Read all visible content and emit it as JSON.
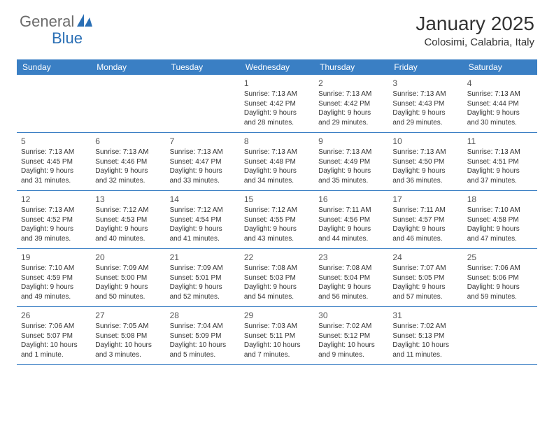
{
  "logo": {
    "text_gray": "General",
    "text_blue": "Blue",
    "gray_color": "#6b6b6b",
    "blue_color": "#2a6fb5"
  },
  "title": "January 2025",
  "location": "Colosimi, Calabria, Italy",
  "colors": {
    "header_bg": "#3a7fc4",
    "header_text": "#ffffff",
    "text": "#333333",
    "border": "#3a7fc4",
    "background": "#ffffff"
  },
  "fonts": {
    "title_size": 28,
    "location_size": 15,
    "day_header_size": 12,
    "day_num_size": 12,
    "body_size": 10
  },
  "day_headers": [
    "Sunday",
    "Monday",
    "Tuesday",
    "Wednesday",
    "Thursday",
    "Friday",
    "Saturday"
  ],
  "weeks": [
    [
      {
        "day": "",
        "sunrise": "",
        "sunset": "",
        "daylight": ""
      },
      {
        "day": "",
        "sunrise": "",
        "sunset": "",
        "daylight": ""
      },
      {
        "day": "",
        "sunrise": "",
        "sunset": "",
        "daylight": ""
      },
      {
        "day": "1",
        "sunrise": "Sunrise: 7:13 AM",
        "sunset": "Sunset: 4:42 PM",
        "daylight": "Daylight: 9 hours and 28 minutes."
      },
      {
        "day": "2",
        "sunrise": "Sunrise: 7:13 AM",
        "sunset": "Sunset: 4:42 PM",
        "daylight": "Daylight: 9 hours and 29 minutes."
      },
      {
        "day": "3",
        "sunrise": "Sunrise: 7:13 AM",
        "sunset": "Sunset: 4:43 PM",
        "daylight": "Daylight: 9 hours and 29 minutes."
      },
      {
        "day": "4",
        "sunrise": "Sunrise: 7:13 AM",
        "sunset": "Sunset: 4:44 PM",
        "daylight": "Daylight: 9 hours and 30 minutes."
      }
    ],
    [
      {
        "day": "5",
        "sunrise": "Sunrise: 7:13 AM",
        "sunset": "Sunset: 4:45 PM",
        "daylight": "Daylight: 9 hours and 31 minutes."
      },
      {
        "day": "6",
        "sunrise": "Sunrise: 7:13 AM",
        "sunset": "Sunset: 4:46 PM",
        "daylight": "Daylight: 9 hours and 32 minutes."
      },
      {
        "day": "7",
        "sunrise": "Sunrise: 7:13 AM",
        "sunset": "Sunset: 4:47 PM",
        "daylight": "Daylight: 9 hours and 33 minutes."
      },
      {
        "day": "8",
        "sunrise": "Sunrise: 7:13 AM",
        "sunset": "Sunset: 4:48 PM",
        "daylight": "Daylight: 9 hours and 34 minutes."
      },
      {
        "day": "9",
        "sunrise": "Sunrise: 7:13 AM",
        "sunset": "Sunset: 4:49 PM",
        "daylight": "Daylight: 9 hours and 35 minutes."
      },
      {
        "day": "10",
        "sunrise": "Sunrise: 7:13 AM",
        "sunset": "Sunset: 4:50 PM",
        "daylight": "Daylight: 9 hours and 36 minutes."
      },
      {
        "day": "11",
        "sunrise": "Sunrise: 7:13 AM",
        "sunset": "Sunset: 4:51 PM",
        "daylight": "Daylight: 9 hours and 37 minutes."
      }
    ],
    [
      {
        "day": "12",
        "sunrise": "Sunrise: 7:13 AM",
        "sunset": "Sunset: 4:52 PM",
        "daylight": "Daylight: 9 hours and 39 minutes."
      },
      {
        "day": "13",
        "sunrise": "Sunrise: 7:12 AM",
        "sunset": "Sunset: 4:53 PM",
        "daylight": "Daylight: 9 hours and 40 minutes."
      },
      {
        "day": "14",
        "sunrise": "Sunrise: 7:12 AM",
        "sunset": "Sunset: 4:54 PM",
        "daylight": "Daylight: 9 hours and 41 minutes."
      },
      {
        "day": "15",
        "sunrise": "Sunrise: 7:12 AM",
        "sunset": "Sunset: 4:55 PM",
        "daylight": "Daylight: 9 hours and 43 minutes."
      },
      {
        "day": "16",
        "sunrise": "Sunrise: 7:11 AM",
        "sunset": "Sunset: 4:56 PM",
        "daylight": "Daylight: 9 hours and 44 minutes."
      },
      {
        "day": "17",
        "sunrise": "Sunrise: 7:11 AM",
        "sunset": "Sunset: 4:57 PM",
        "daylight": "Daylight: 9 hours and 46 minutes."
      },
      {
        "day": "18",
        "sunrise": "Sunrise: 7:10 AM",
        "sunset": "Sunset: 4:58 PM",
        "daylight": "Daylight: 9 hours and 47 minutes."
      }
    ],
    [
      {
        "day": "19",
        "sunrise": "Sunrise: 7:10 AM",
        "sunset": "Sunset: 4:59 PM",
        "daylight": "Daylight: 9 hours and 49 minutes."
      },
      {
        "day": "20",
        "sunrise": "Sunrise: 7:09 AM",
        "sunset": "Sunset: 5:00 PM",
        "daylight": "Daylight: 9 hours and 50 minutes."
      },
      {
        "day": "21",
        "sunrise": "Sunrise: 7:09 AM",
        "sunset": "Sunset: 5:01 PM",
        "daylight": "Daylight: 9 hours and 52 minutes."
      },
      {
        "day": "22",
        "sunrise": "Sunrise: 7:08 AM",
        "sunset": "Sunset: 5:03 PM",
        "daylight": "Daylight: 9 hours and 54 minutes."
      },
      {
        "day": "23",
        "sunrise": "Sunrise: 7:08 AM",
        "sunset": "Sunset: 5:04 PM",
        "daylight": "Daylight: 9 hours and 56 minutes."
      },
      {
        "day": "24",
        "sunrise": "Sunrise: 7:07 AM",
        "sunset": "Sunset: 5:05 PM",
        "daylight": "Daylight: 9 hours and 57 minutes."
      },
      {
        "day": "25",
        "sunrise": "Sunrise: 7:06 AM",
        "sunset": "Sunset: 5:06 PM",
        "daylight": "Daylight: 9 hours and 59 minutes."
      }
    ],
    [
      {
        "day": "26",
        "sunrise": "Sunrise: 7:06 AM",
        "sunset": "Sunset: 5:07 PM",
        "daylight": "Daylight: 10 hours and 1 minute."
      },
      {
        "day": "27",
        "sunrise": "Sunrise: 7:05 AM",
        "sunset": "Sunset: 5:08 PM",
        "daylight": "Daylight: 10 hours and 3 minutes."
      },
      {
        "day": "28",
        "sunrise": "Sunrise: 7:04 AM",
        "sunset": "Sunset: 5:09 PM",
        "daylight": "Daylight: 10 hours and 5 minutes."
      },
      {
        "day": "29",
        "sunrise": "Sunrise: 7:03 AM",
        "sunset": "Sunset: 5:11 PM",
        "daylight": "Daylight: 10 hours and 7 minutes."
      },
      {
        "day": "30",
        "sunrise": "Sunrise: 7:02 AM",
        "sunset": "Sunset: 5:12 PM",
        "daylight": "Daylight: 10 hours and 9 minutes."
      },
      {
        "day": "31",
        "sunrise": "Sunrise: 7:02 AM",
        "sunset": "Sunset: 5:13 PM",
        "daylight": "Daylight: 10 hours and 11 minutes."
      },
      {
        "day": "",
        "sunrise": "",
        "sunset": "",
        "daylight": ""
      }
    ]
  ]
}
